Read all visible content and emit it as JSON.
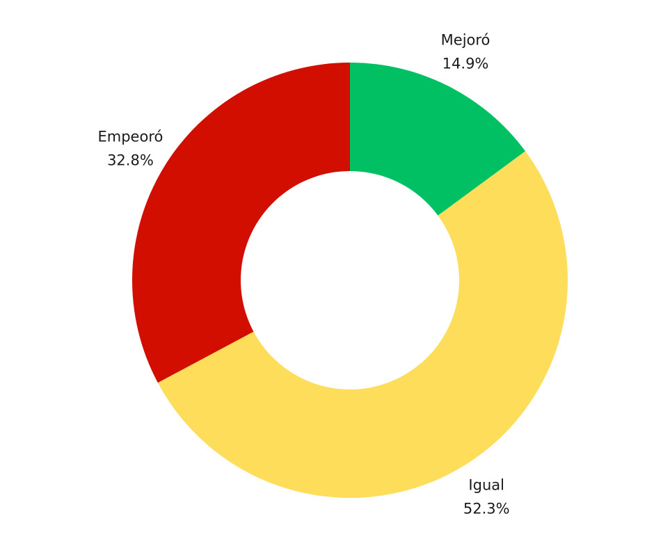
{
  "chart_data": {
    "type": "donut",
    "categories": [
      "Mejoró",
      "Igual",
      "Empeoró"
    ],
    "values": [
      14.9,
      52.3,
      32.8
    ],
    "value_labels": [
      "14.9%",
      "52.3%",
      "32.8%"
    ],
    "colors": [
      "#00c064",
      "#fedd5a",
      "#d10e00"
    ]
  }
}
